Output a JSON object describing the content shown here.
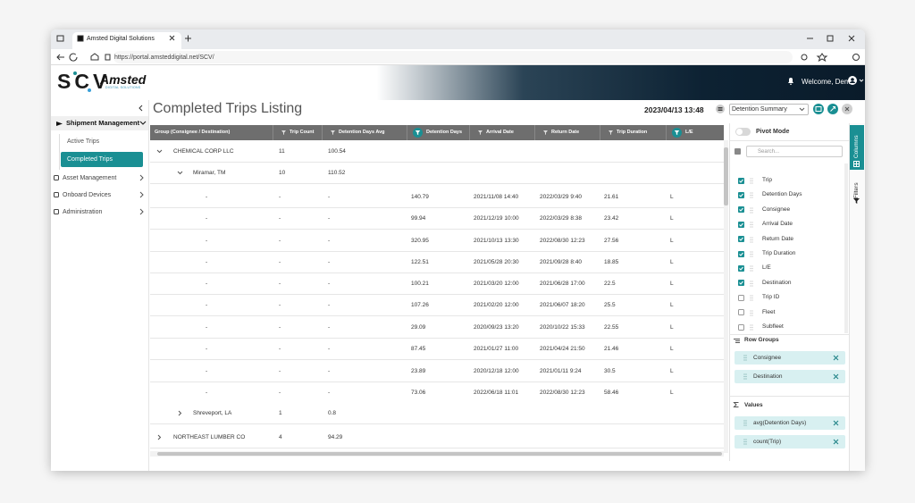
{
  "browser": {
    "tab_title": "Amsted Digital Solutions",
    "url": "https://portal.amsteddigital.net/SCV/"
  },
  "header": {
    "logo": "SCV",
    "brand": "Amsted",
    "brand_sub": "DIGITAL SOLUTIONS",
    "welcome": "Welcome, Demo"
  },
  "sidebar": {
    "items": [
      {
        "label": "Shipment Management",
        "expanded": true,
        "children": [
          {
            "label": "Active Trips",
            "active": false
          },
          {
            "label": "Completed Trips",
            "active": true
          }
        ]
      },
      {
        "label": "Asset Management",
        "expanded": false
      },
      {
        "label": "Onboard Devices",
        "expanded": false
      },
      {
        "label": "Administration",
        "expanded": false
      }
    ]
  },
  "page": {
    "title": "Completed Trips Listing",
    "timestamp": "2023/04/13 13:48",
    "view": "Detention Summary"
  },
  "table": {
    "columns": [
      {
        "label": "Group (Consignee / Destination)",
        "filter": "none"
      },
      {
        "label": "Trip Count",
        "filter": "plain"
      },
      {
        "label": "Detention Days Avg",
        "filter": "plain"
      },
      {
        "label": "Detention Days",
        "filter": "active"
      },
      {
        "label": "Arrival Date",
        "filter": "plain"
      },
      {
        "label": "Return Date",
        "filter": "plain"
      },
      {
        "label": "Trip Duration",
        "filter": "plain"
      },
      {
        "label": "L/E",
        "filter": "active"
      }
    ],
    "rows": [
      {
        "kind": "group",
        "expanded": true,
        "cells": [
          "CHEMICAL CORP LLC",
          "11",
          "100.54"
        ]
      },
      {
        "kind": "subgroup",
        "expanded": true,
        "cells": [
          "Miramar, TM",
          "10",
          "110.52"
        ]
      },
      {
        "kind": "trip",
        "cells": [
          "-",
          "-",
          "-",
          "140.79",
          "2021/11/08 14:40",
          "2022/03/29 9:40",
          "21.61",
          "L"
        ]
      },
      {
        "kind": "trip",
        "cells": [
          "-",
          "-",
          "-",
          "99.94",
          "2021/12/19 10:00",
          "2022/03/29 8:38",
          "23.42",
          "L"
        ]
      },
      {
        "kind": "trip",
        "cells": [
          "-",
          "-",
          "-",
          "320.95",
          "2021/10/13 13:30",
          "2022/08/30 12:23",
          "27.56",
          "L"
        ]
      },
      {
        "kind": "trip",
        "cells": [
          "-",
          "-",
          "-",
          "122.51",
          "2021/05/28 20:30",
          "2021/09/28 8:40",
          "18.85",
          "L"
        ]
      },
      {
        "kind": "trip",
        "cells": [
          "-",
          "-",
          "-",
          "100.21",
          "2021/03/20 12:00",
          "2021/06/28 17:00",
          "22.5",
          "L"
        ]
      },
      {
        "kind": "trip",
        "cells": [
          "-",
          "-",
          "-",
          "107.26",
          "2021/02/20 12:00",
          "2021/06/07 18:20",
          "25.5",
          "L"
        ]
      },
      {
        "kind": "trip",
        "cells": [
          "-",
          "-",
          "-",
          "29.09",
          "2020/09/23 13:20",
          "2020/10/22 15:33",
          "22.55",
          "L"
        ]
      },
      {
        "kind": "trip",
        "cells": [
          "-",
          "-",
          "-",
          "87.45",
          "2021/01/27 11:00",
          "2021/04/24 21:50",
          "21.46",
          "L"
        ]
      },
      {
        "kind": "trip",
        "cells": [
          "-",
          "-",
          "-",
          "23.89",
          "2020/12/18 12:00",
          "2021/01/11 9:24",
          "30.5",
          "L"
        ]
      },
      {
        "kind": "trip",
        "cells": [
          "-",
          "-",
          "-",
          "73.06",
          "2022/06/18 11:01",
          "2022/08/30 12:23",
          "58.46",
          "L"
        ]
      },
      {
        "kind": "subgroup",
        "expanded": false,
        "cells": [
          "Shreveport, LA",
          "1",
          "0.8"
        ]
      },
      {
        "kind": "group",
        "expanded": false,
        "cells": [
          "NORTHEAST LUMBER CO",
          "4",
          "94.29"
        ]
      }
    ]
  },
  "panel": {
    "pivot_mode": "Pivot Mode",
    "search_placeholder": "Search...",
    "columns": [
      {
        "label": "Trip",
        "checked": true
      },
      {
        "label": "Detention Days",
        "checked": true
      },
      {
        "label": "Consignee",
        "checked": true
      },
      {
        "label": "Arrival Date",
        "checked": true
      },
      {
        "label": "Return Date",
        "checked": true
      },
      {
        "label": "Trip Duration",
        "checked": true
      },
      {
        "label": "L/E",
        "checked": true
      },
      {
        "label": "Destination",
        "checked": true
      },
      {
        "label": "Trip ID",
        "checked": false
      },
      {
        "label": "Fleet",
        "checked": false
      },
      {
        "label": "Subfleet",
        "checked": false
      }
    ],
    "row_groups_title": "Row Groups",
    "row_groups": [
      "Consignee",
      "Destination"
    ],
    "values_title": "Values",
    "values": [
      "avg(Detention Days)",
      "count(Trip)"
    ],
    "tabs": [
      "Columns",
      "Filters"
    ]
  }
}
